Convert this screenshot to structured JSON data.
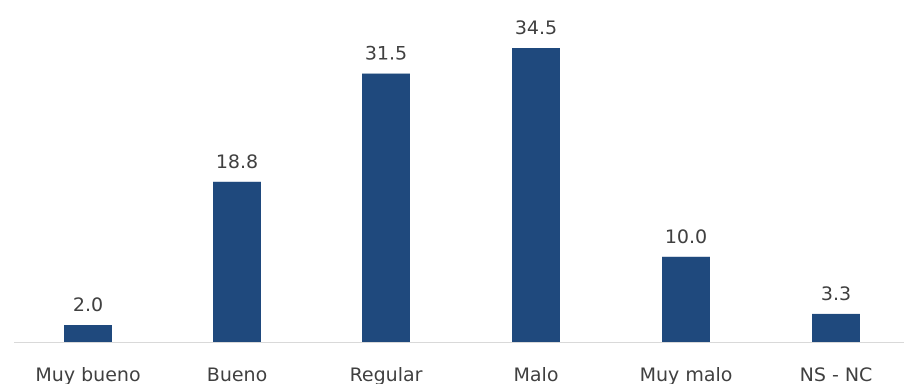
{
  "chart_data": {
    "type": "bar",
    "title": "",
    "xlabel": "",
    "ylabel": "",
    "categories": [
      "Muy bueno",
      "Bueno",
      "Regular",
      "Malo",
      "Muy malo",
      "NS - NC"
    ],
    "values": [
      2.0,
      18.8,
      31.5,
      34.5,
      10.0,
      3.3
    ],
    "value_labels": [
      "2.0",
      "18.8",
      "31.5",
      "34.5",
      "10.0",
      "3.3"
    ],
    "ylim": [
      0,
      34.5
    ],
    "grid": false,
    "legend": "none",
    "bar_color": "#1f497d",
    "axis_color": "#d9d9d9",
    "text_color": "#404040"
  }
}
